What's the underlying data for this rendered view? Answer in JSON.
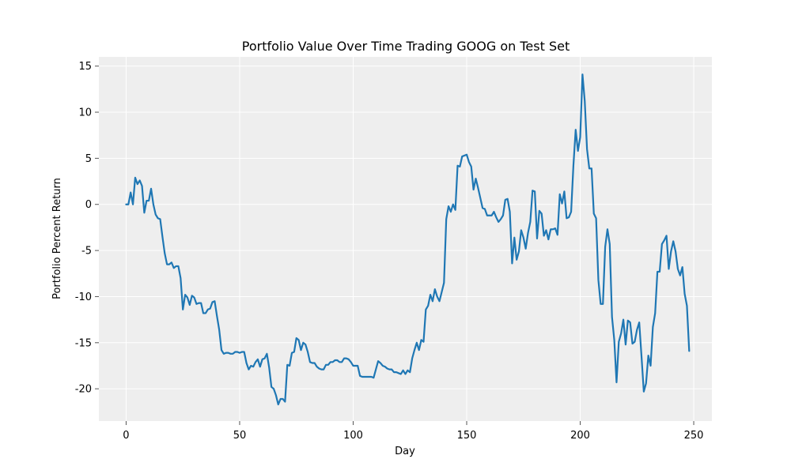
{
  "chart_data": {
    "type": "line",
    "title": "Portfolio Value Over Time Trading GOOG on Test Set",
    "xlabel": "Day",
    "ylabel": "Portfolio Percent Return",
    "xlim": [
      -12,
      258
    ],
    "ylim": [
      -23.5,
      16
    ],
    "xticks": [
      0,
      50,
      100,
      150,
      200,
      250
    ],
    "yticks": [
      -20,
      -15,
      -10,
      -5,
      0,
      5,
      10,
      15
    ],
    "grid": true,
    "background_color": "#eeeeee",
    "grid_color": "#ffffff",
    "series": [
      {
        "color": "#1f77b4",
        "points": [
          [
            0,
            0
          ],
          [
            1,
            0
          ],
          [
            2,
            1.3
          ],
          [
            3,
            0
          ],
          [
            4,
            2.9
          ],
          [
            5,
            2.2
          ],
          [
            6,
            2.6
          ],
          [
            7,
            2
          ],
          [
            8,
            -0.9
          ],
          [
            9,
            0.4
          ],
          [
            10,
            0.4
          ],
          [
            11,
            1.7
          ],
          [
            12,
            0
          ],
          [
            13,
            -1.1
          ],
          [
            14,
            -1.5
          ],
          [
            15,
            -1.6
          ],
          [
            16,
            -3.5
          ],
          [
            17,
            -5.3
          ],
          [
            18,
            -6.5
          ],
          [
            19,
            -6.5
          ],
          [
            20,
            -6.3
          ],
          [
            21,
            -6.9
          ],
          [
            22,
            -6.7
          ],
          [
            23,
            -6.7
          ],
          [
            24,
            -8
          ],
          [
            25,
            -11.4
          ],
          [
            26,
            -9.8
          ],
          [
            27,
            -10.1
          ],
          [
            28,
            -10.9
          ],
          [
            29,
            -9.9
          ],
          [
            30,
            -10.1
          ],
          [
            31,
            -10.8
          ],
          [
            32,
            -10.7
          ],
          [
            33,
            -10.7
          ],
          [
            34,
            -11.8
          ],
          [
            35,
            -11.8
          ],
          [
            36,
            -11.4
          ],
          [
            37,
            -11.3
          ],
          [
            38,
            -10.6
          ],
          [
            39,
            -10.5
          ],
          [
            40,
            -12.1
          ],
          [
            41,
            -13.6
          ],
          [
            42,
            -15.8
          ],
          [
            43,
            -16.2
          ],
          [
            44,
            -16.1
          ],
          [
            45,
            -16.1
          ],
          [
            46,
            -16.2
          ],
          [
            47,
            -16.2
          ],
          [
            48,
            -16
          ],
          [
            49,
            -16
          ],
          [
            50,
            -16.1
          ],
          [
            51,
            -16
          ],
          [
            52,
            -16
          ],
          [
            53,
            -17.2
          ],
          [
            54,
            -17.9
          ],
          [
            55,
            -17.5
          ],
          [
            56,
            -17.6
          ],
          [
            57,
            -17.1
          ],
          [
            58,
            -16.8
          ],
          [
            59,
            -17.6
          ],
          [
            60,
            -16.8
          ],
          [
            61,
            -16.7
          ],
          [
            62,
            -16.2
          ],
          [
            63,
            -17.7
          ],
          [
            64,
            -19.8
          ],
          [
            65,
            -20
          ],
          [
            66,
            -20.7
          ],
          [
            67,
            -21.7
          ],
          [
            68,
            -21.1
          ],
          [
            69,
            -21.1
          ],
          [
            70,
            -21.4
          ],
          [
            71,
            -17.4
          ],
          [
            72,
            -17.5
          ],
          [
            73,
            -16.1
          ],
          [
            74,
            -16
          ],
          [
            75,
            -14.5
          ],
          [
            76,
            -14.7
          ],
          [
            77,
            -15.8
          ],
          [
            78,
            -15
          ],
          [
            79,
            -15.2
          ],
          [
            80,
            -16
          ],
          [
            81,
            -17.1
          ],
          [
            82,
            -17.2
          ],
          [
            83,
            -17.2
          ],
          [
            84,
            -17.6
          ],
          [
            85,
            -17.8
          ],
          [
            86,
            -17.9
          ],
          [
            87,
            -17.9
          ],
          [
            88,
            -17.4
          ],
          [
            89,
            -17.4
          ],
          [
            90,
            -17.1
          ],
          [
            91,
            -17.1
          ],
          [
            92,
            -16.9
          ],
          [
            93,
            -16.9
          ],
          [
            94,
            -17.1
          ],
          [
            95,
            -17.1
          ],
          [
            96,
            -16.7
          ],
          [
            97,
            -16.7
          ],
          [
            98,
            -16.8
          ],
          [
            99,
            -17.1
          ],
          [
            100,
            -17.5
          ],
          [
            101,
            -17.5
          ],
          [
            102,
            -17.5
          ],
          [
            103,
            -18.6
          ],
          [
            104,
            -18.7
          ],
          [
            105,
            -18.7
          ],
          [
            106,
            -18.7
          ],
          [
            107,
            -18.7
          ],
          [
            108,
            -18.7
          ],
          [
            109,
            -18.8
          ],
          [
            110,
            -17.9
          ],
          [
            111,
            -17
          ],
          [
            112,
            -17.2
          ],
          [
            113,
            -17.5
          ],
          [
            114,
            -17.6
          ],
          [
            115,
            -17.8
          ],
          [
            116,
            -17.9
          ],
          [
            117,
            -17.9
          ],
          [
            118,
            -18.2
          ],
          [
            119,
            -18.2
          ],
          [
            120,
            -18.3
          ],
          [
            121,
            -18.4
          ],
          [
            122,
            -18
          ],
          [
            123,
            -18.4
          ],
          [
            124,
            -18
          ],
          [
            125,
            -18.2
          ],
          [
            126,
            -16.7
          ],
          [
            127,
            -15.8
          ],
          [
            128,
            -15
          ],
          [
            129,
            -15.8
          ],
          [
            130,
            -14.7
          ],
          [
            131,
            -14.9
          ],
          [
            132,
            -11.4
          ],
          [
            133,
            -11
          ],
          [
            134,
            -9.8
          ],
          [
            135,
            -10.5
          ],
          [
            136,
            -9.2
          ],
          [
            137,
            -10
          ],
          [
            138,
            -10.5
          ],
          [
            139,
            -9.5
          ],
          [
            140,
            -8.5
          ],
          [
            141,
            -1.6
          ],
          [
            142,
            -0.2
          ],
          [
            143,
            -0.8
          ],
          [
            144,
            0
          ],
          [
            145,
            -0.6
          ],
          [
            146,
            4.2
          ],
          [
            147,
            4.1
          ],
          [
            148,
            5.2
          ],
          [
            149,
            5.3
          ],
          [
            150,
            5.4
          ],
          [
            151,
            4.6
          ],
          [
            152,
            4.1
          ],
          [
            153,
            1.6
          ],
          [
            154,
            2.8
          ],
          [
            155,
            1.8
          ],
          [
            156,
            0.7
          ],
          [
            157,
            -0.4
          ],
          [
            158,
            -0.5
          ],
          [
            159,
            -1.2
          ],
          [
            160,
            -1.2
          ],
          [
            161,
            -1.2
          ],
          [
            162,
            -0.8
          ],
          [
            163,
            -1.4
          ],
          [
            164,
            -1.9
          ],
          [
            165,
            -1.6
          ],
          [
            166,
            -1.2
          ],
          [
            167,
            0.5
          ],
          [
            168,
            0.6
          ],
          [
            169,
            -0.8
          ],
          [
            170,
            -6.4
          ],
          [
            171,
            -3.6
          ],
          [
            172,
            -6
          ],
          [
            173,
            -5.1
          ],
          [
            174,
            -2.8
          ],
          [
            175,
            -3.6
          ],
          [
            176,
            -4.8
          ],
          [
            177,
            -3.1
          ],
          [
            178,
            -1.9
          ],
          [
            179,
            1.5
          ],
          [
            180,
            1.4
          ],
          [
            181,
            -3.7
          ],
          [
            182,
            -0.7
          ],
          [
            183,
            -1
          ],
          [
            184,
            -3.4
          ],
          [
            185,
            -2.8
          ],
          [
            186,
            -3.8
          ],
          [
            187,
            -2.7
          ],
          [
            188,
            -2.7
          ],
          [
            189,
            -2.6
          ],
          [
            190,
            -3.3
          ],
          [
            191,
            1.1
          ],
          [
            192,
            0.1
          ],
          [
            193,
            1.4
          ],
          [
            194,
            -1.5
          ],
          [
            195,
            -1.4
          ],
          [
            196,
            -0.8
          ],
          [
            197,
            4.2
          ],
          [
            198,
            8.1
          ],
          [
            199,
            5.8
          ],
          [
            200,
            7.3
          ],
          [
            201,
            14.1
          ],
          [
            202,
            11.2
          ],
          [
            203,
            6
          ],
          [
            204,
            3.9
          ],
          [
            205,
            3.9
          ],
          [
            206,
            -1
          ],
          [
            207,
            -1.5
          ],
          [
            208,
            -8.2
          ],
          [
            209,
            -10.8
          ],
          [
            210,
            -10.8
          ],
          [
            211,
            -4.6
          ],
          [
            212,
            -2.7
          ],
          [
            213,
            -4.3
          ],
          [
            214,
            -12.2
          ],
          [
            215,
            -14.7
          ],
          [
            216,
            -19.3
          ],
          [
            217,
            -14.9
          ],
          [
            218,
            -14
          ],
          [
            219,
            -12.5
          ],
          [
            220,
            -15.2
          ],
          [
            221,
            -12.6
          ],
          [
            222,
            -12.8
          ],
          [
            223,
            -15.1
          ],
          [
            224,
            -14.9
          ],
          [
            225,
            -13.6
          ],
          [
            226,
            -12.8
          ],
          [
            227,
            -16.5
          ],
          [
            228,
            -20.3
          ],
          [
            229,
            -19.4
          ],
          [
            230,
            -16.4
          ],
          [
            231,
            -17.5
          ],
          [
            232,
            -13.3
          ],
          [
            233,
            -11.8
          ],
          [
            234,
            -7.3
          ],
          [
            235,
            -7.3
          ],
          [
            236,
            -4.3
          ],
          [
            237,
            -3.9
          ],
          [
            238,
            -3.4
          ],
          [
            239,
            -7
          ],
          [
            240,
            -5.1
          ],
          [
            241,
            -4
          ],
          [
            242,
            -5.1
          ],
          [
            243,
            -7
          ],
          [
            244,
            -7.7
          ],
          [
            245,
            -6.8
          ],
          [
            246,
            -9.7
          ],
          [
            247,
            -11
          ],
          [
            248,
            -15.9
          ]
        ]
      }
    ]
  }
}
